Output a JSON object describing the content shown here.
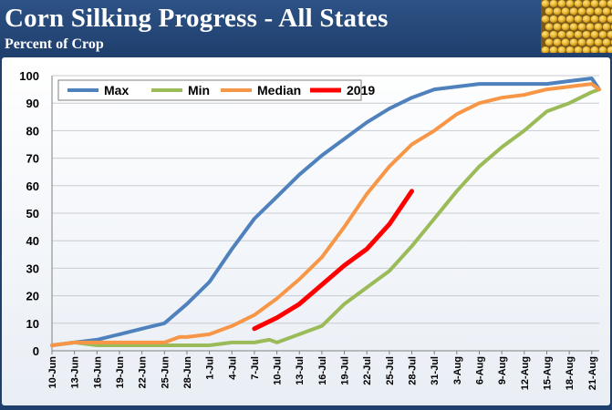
{
  "header": {
    "title": "Corn Silking Progress - All States",
    "subtitle": "Percent of Crop"
  },
  "colors": {
    "header_bg": "#1f3f6d",
    "max": "#4f81bd",
    "min": "#9bbb59",
    "median": "#f79646",
    "y2019": "#ff0000"
  },
  "chart_data": {
    "type": "line",
    "title": "Corn Silking Progress - All States",
    "subtitle": "Percent of Crop",
    "xlabel": "",
    "ylabel": "",
    "ylim": [
      0,
      100
    ],
    "yticks": [
      0,
      10,
      20,
      30,
      40,
      50,
      60,
      70,
      80,
      90,
      100
    ],
    "grid": true,
    "legend": "top-left",
    "x_tick_labels": [
      "10-Jun",
      "13-Jun",
      "16-Jun",
      "19-Jun",
      "22-Jun",
      "25-Jun",
      "28-Jun",
      "1-Jul",
      "4-Jul",
      "7-Jul",
      "10-Jul",
      "13-Jul",
      "16-Jul",
      "19-Jul",
      "22-Jul",
      "25-Jul",
      "28-Jul",
      "31-Jul",
      "3-Aug",
      "6-Aug",
      "9-Aug",
      "12-Aug",
      "15-Aug",
      "18-Aug",
      "21-Aug"
    ],
    "x_range": [
      "10-Jun",
      "22-Aug"
    ],
    "series": [
      {
        "name": "Max",
        "color": "#4f81bd",
        "points": [
          [
            "10-Jun",
            2
          ],
          [
            "13-Jun",
            3
          ],
          [
            "16-Jun",
            4
          ],
          [
            "19-Jun",
            6
          ],
          [
            "22-Jun",
            8
          ],
          [
            "25-Jun",
            10
          ],
          [
            "28-Jun",
            17
          ],
          [
            "1-Jul",
            25
          ],
          [
            "4-Jul",
            37
          ],
          [
            "7-Jul",
            48
          ],
          [
            "10-Jul",
            56
          ],
          [
            "13-Jul",
            64
          ],
          [
            "16-Jul",
            71
          ],
          [
            "19-Jul",
            77
          ],
          [
            "22-Jul",
            83
          ],
          [
            "25-Jul",
            88
          ],
          [
            "28-Jul",
            92
          ],
          [
            "31-Jul",
            95
          ],
          [
            "3-Aug",
            96
          ],
          [
            "6-Aug",
            97
          ],
          [
            "9-Aug",
            97
          ],
          [
            "12-Aug",
            97
          ],
          [
            "15-Aug",
            97
          ],
          [
            "18-Aug",
            98
          ],
          [
            "21-Aug",
            99
          ],
          [
            "22-Aug",
            95
          ]
        ]
      },
      {
        "name": "Min",
        "color": "#9bbb59",
        "points": [
          [
            "10-Jun",
            2
          ],
          [
            "13-Jun",
            3
          ],
          [
            "16-Jun",
            2
          ],
          [
            "19-Jun",
            2
          ],
          [
            "22-Jun",
            2
          ],
          [
            "25-Jun",
            2
          ],
          [
            "28-Jun",
            2
          ],
          [
            "1-Jul",
            2
          ],
          [
            "4-Jul",
            3
          ],
          [
            "7-Jul",
            3
          ],
          [
            "9-Jul",
            4
          ],
          [
            "10-Jul",
            3
          ],
          [
            "13-Jul",
            6
          ],
          [
            "16-Jul",
            9
          ],
          [
            "19-Jul",
            17
          ],
          [
            "22-Jul",
            23
          ],
          [
            "25-Jul",
            29
          ],
          [
            "28-Jul",
            38
          ],
          [
            "31-Jul",
            48
          ],
          [
            "3-Aug",
            58
          ],
          [
            "6-Aug",
            67
          ],
          [
            "9-Aug",
            74
          ],
          [
            "12-Aug",
            80
          ],
          [
            "15-Aug",
            87
          ],
          [
            "18-Aug",
            90
          ],
          [
            "21-Aug",
            94
          ],
          [
            "22-Aug",
            95
          ]
        ]
      },
      {
        "name": "Median",
        "color": "#f79646",
        "points": [
          [
            "10-Jun",
            2
          ],
          [
            "13-Jun",
            3
          ],
          [
            "16-Jun",
            3
          ],
          [
            "19-Jun",
            3
          ],
          [
            "22-Jun",
            3
          ],
          [
            "25-Jun",
            3
          ],
          [
            "27-Jun",
            5
          ],
          [
            "28-Jun",
            5
          ],
          [
            "1-Jul",
            6
          ],
          [
            "4-Jul",
            9
          ],
          [
            "7-Jul",
            13
          ],
          [
            "10-Jul",
            19
          ],
          [
            "13-Jul",
            26
          ],
          [
            "16-Jul",
            34
          ],
          [
            "19-Jul",
            45
          ],
          [
            "22-Jul",
            57
          ],
          [
            "25-Jul",
            67
          ],
          [
            "28-Jul",
            75
          ],
          [
            "31-Jul",
            80
          ],
          [
            "3-Aug",
            86
          ],
          [
            "6-Aug",
            90
          ],
          [
            "9-Aug",
            92
          ],
          [
            "12-Aug",
            93
          ],
          [
            "15-Aug",
            95
          ],
          [
            "18-Aug",
            96
          ],
          [
            "21-Aug",
            97
          ],
          [
            "22-Aug",
            95
          ]
        ]
      },
      {
        "name": "2019",
        "color": "#ff0000",
        "points": [
          [
            "7-Jul",
            8
          ],
          [
            "10-Jul",
            12
          ],
          [
            "13-Jul",
            17
          ],
          [
            "16-Jul",
            24
          ],
          [
            "19-Jul",
            31
          ],
          [
            "22-Jul",
            37
          ],
          [
            "25-Jul",
            46
          ],
          [
            "28-Jul",
            58
          ]
        ]
      }
    ]
  }
}
